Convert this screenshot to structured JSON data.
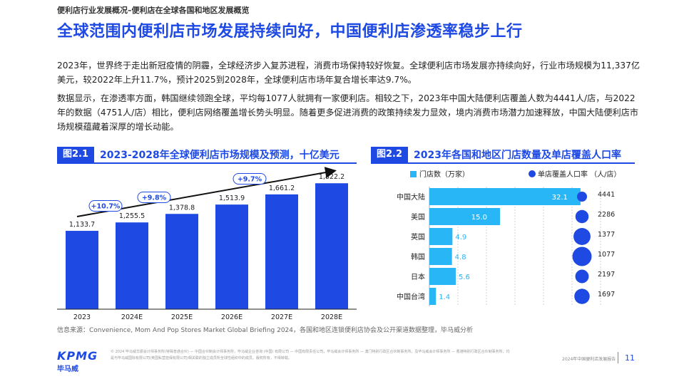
{
  "header": {
    "breadcrumb": "便利店行业发展概况–便利店在全球各国和地区发展概览",
    "title": "全球范围内便利店市场发展持续向好，中国便利店渗透率稳步上行"
  },
  "body": {
    "para1": "2023年，世界终于走出新冠疫情的阴霾，全球经济步入复苏进程，消费市场保持较好恢复。全球便利店市场发展亦持续向好，行业市场规模为11,337亿美元，较2022年上升11.7%，预计2025到2028年，全球便利店市场年复合增长率达9.7%。",
    "para2": "数据显示，在渗透率方面，韩国继续领跑全球，平均每1077人就拥有一家便利店。相较之下，2023年中国大陆便利店覆盖人数为4441人/店，与2022年的数据（4751人/店）相比，便利店网络覆盖增长势头明显。随着更多促进消费的政策持续发力显效，境内消费市场潜力加速释放，中国大陆便利店市场规模蕴藏着深厚的增长动能。"
  },
  "fig1": {
    "tag": "图2.1",
    "title": "2023-2028年全球便利店市场规模及预测，十亿美元"
  },
  "fig2": {
    "tag": "图2.2",
    "title": "2023年各国和地区门店数量及单店覆盖人口率"
  },
  "chart_data": [
    {
      "type": "bar",
      "title": "2023-2028年全球便利店市场规模及预测，十亿美元",
      "categories": [
        "2023",
        "2024E",
        "2025E",
        "2026E",
        "2027E",
        "2028E"
      ],
      "values": [
        1133.7,
        1255.5,
        1378.8,
        1513.9,
        1661.2,
        1822.2
      ],
      "value_labels": [
        "1,133.7",
        "1,255.5",
        "1,378.8",
        "1,513.9",
        "1,661.2",
        "1,822.2"
      ],
      "annotations": [
        "+10.7%",
        "+9.8%",
        "+9.7%"
      ],
      "bar_color": "#1e49e2",
      "ylim": [
        0,
        2000
      ]
    },
    {
      "type": "bar",
      "orientation": "horizontal",
      "title": "2023年各国和地区门店数量及单店覆盖人口率",
      "categories": [
        "中国大陆",
        "美国",
        "英国",
        "韩国",
        "日本",
        "中国台湾"
      ],
      "series": [
        {
          "name": "门店数（万家）",
          "values": [
            32.1,
            15.0,
            4.9,
            4.8,
            5.6,
            1.4
          ],
          "color": "#29b6f6"
        },
        {
          "name": "单店覆盖人口率 （人/店）",
          "values": [
            4441,
            2286,
            1377,
            1077,
            2197,
            1697
          ],
          "color": "#1e49e2"
        }
      ],
      "labels_a": [
        "32.1",
        "15.0",
        "4.9",
        "4.8",
        "5.6",
        "1.4"
      ],
      "labels_b": [
        "4441",
        "2286",
        "1377",
        "1077",
        "2197",
        "1697"
      ],
      "xlim": [
        0,
        34
      ],
      "legend": "top"
    }
  ],
  "footer": {
    "source": "信息来源：Convenience, Mom And Pop Stores Market Global Briefing 2024，各国和地区连锁便利店协会及公开渠道数据整理，毕马威分析",
    "logo": "KPMG",
    "logo_cn": "毕马威",
    "disclaimer": "© 2024 毕马威华振会计师事务所(特殊普通合伙) — 中国合伙制会计师事务所，毕马威企业咨询 (中国) 有限公司 — 中国有限责任公司，毕马威会计师事务所 — 澳门特别行政区合伙制事务所，及毕马威会计师事务所 — 香港特别行政区合伙制事务所，均是与毕马威国际有限公司(英国私营担保有限公司)相关联的独立成员所全球性组织中的成员。版权所有，不得转载。",
    "report": "2024年中国便利店发展报告",
    "page": "11"
  }
}
